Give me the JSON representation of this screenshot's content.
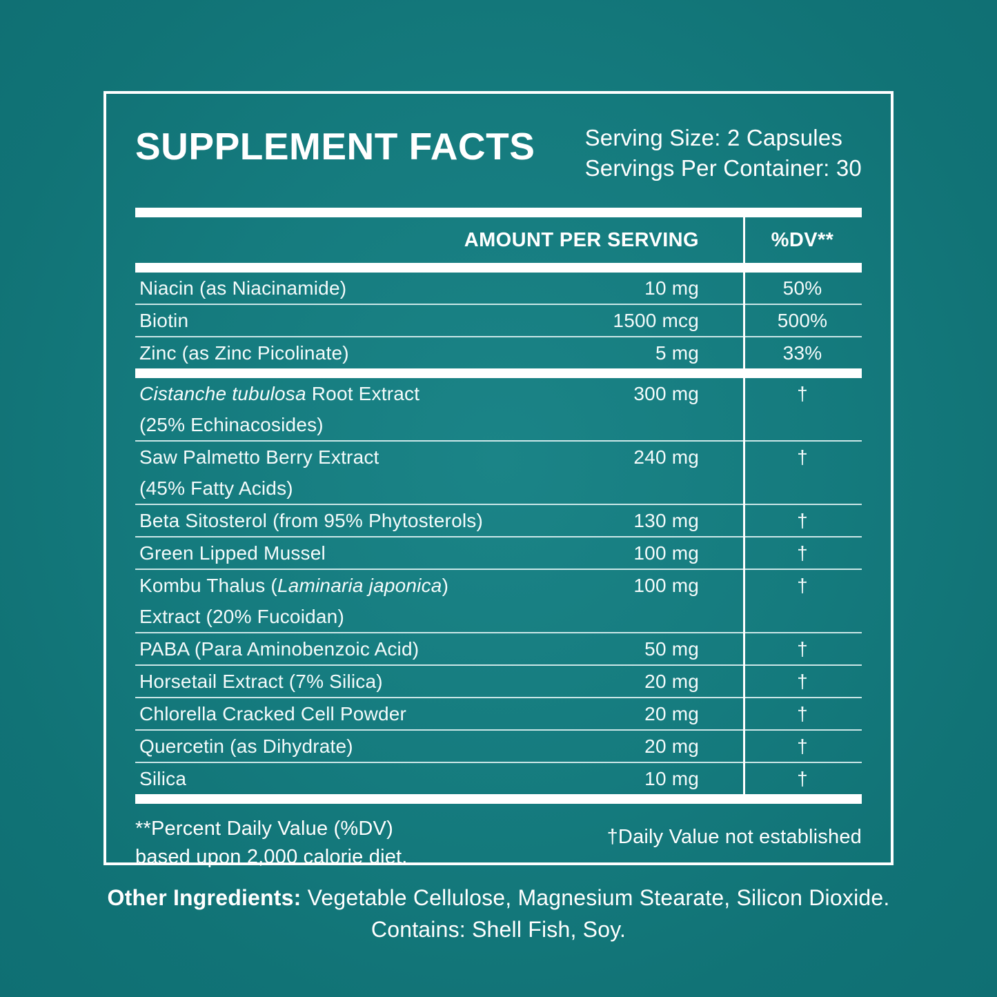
{
  "colors": {
    "background_center": "#1b8487",
    "background_edge": "#0f6f73",
    "text": "#ffffff",
    "border": "#ffffff"
  },
  "header": {
    "title": "SUPPLEMENT FACTS",
    "serving_size": "Serving Size: 2 Capsules",
    "servings_per_container": "Servings Per Container: 30"
  },
  "table": {
    "amount_header": "AMOUNT PER SERVING",
    "dv_header": "%DV**",
    "rows": [
      {
        "pre": "Niacin (as Niacinamide)",
        "italic": "",
        "post": "",
        "line2": "",
        "amount": "10 mg",
        "dv": "50%"
      },
      {
        "pre": "Biotin",
        "italic": "",
        "post": "",
        "line2": "",
        "amount": "1500 mcg",
        "dv": "500%"
      },
      {
        "pre": "Zinc (as Zinc Picolinate)",
        "italic": "",
        "post": "",
        "line2": "",
        "amount": "5 mg",
        "dv": "33%"
      },
      {
        "pre": "",
        "italic": "Cistanche tubulosa",
        "post": " Root Extract",
        "line2": "(25% Echinacosides)",
        "amount": "300 mg",
        "dv": "†"
      },
      {
        "pre": "Saw Palmetto Berry Extract",
        "italic": "",
        "post": "",
        "line2": "(45% Fatty Acids)",
        "amount": "240 mg",
        "dv": "†"
      },
      {
        "pre": "Beta Sitosterol (from 95% Phytosterols)",
        "italic": "",
        "post": "",
        "line2": "",
        "amount": "130 mg",
        "dv": "†"
      },
      {
        "pre": "Green Lipped Mussel",
        "italic": "",
        "post": "",
        "line2": "",
        "amount": "100 mg",
        "dv": "†"
      },
      {
        "pre": "Kombu Thalus (",
        "italic": "Laminaria japonica",
        "post": ")",
        "line2": "Extract (20% Fucoidan)",
        "amount": "100 mg",
        "dv": "†"
      },
      {
        "pre": "PABA (Para Aminobenzoic Acid)",
        "italic": "",
        "post": "",
        "line2": "",
        "amount": "50 mg",
        "dv": "†"
      },
      {
        "pre": "Horsetail Extract (7% Silica)",
        "italic": "",
        "post": "",
        "line2": "",
        "amount": "20 mg",
        "dv": "†"
      },
      {
        "pre": "Chlorella Cracked Cell Powder",
        "italic": "",
        "post": "",
        "line2": "",
        "amount": "20 mg",
        "dv": "†"
      },
      {
        "pre": "Quercetin (as Dihydrate)",
        "italic": "",
        "post": "",
        "line2": "",
        "amount": "20 mg",
        "dv": "†"
      },
      {
        "pre": "Silica",
        "italic": "",
        "post": "",
        "line2": "",
        "amount": "10 mg",
        "dv": "†"
      }
    ]
  },
  "footnotes": {
    "dv_note_line1": "**Percent Daily Value (%DV)",
    "dv_note_line2": "based upon 2,000 calorie diet.",
    "established_note": "†Daily Value not established"
  },
  "other_ingredients": {
    "label": "Other Ingredients:",
    "text": " Vegetable Cellulose, Magnesium Stearate, Silicon Dioxide.",
    "contains": "Contains: Shell Fish, Soy."
  }
}
